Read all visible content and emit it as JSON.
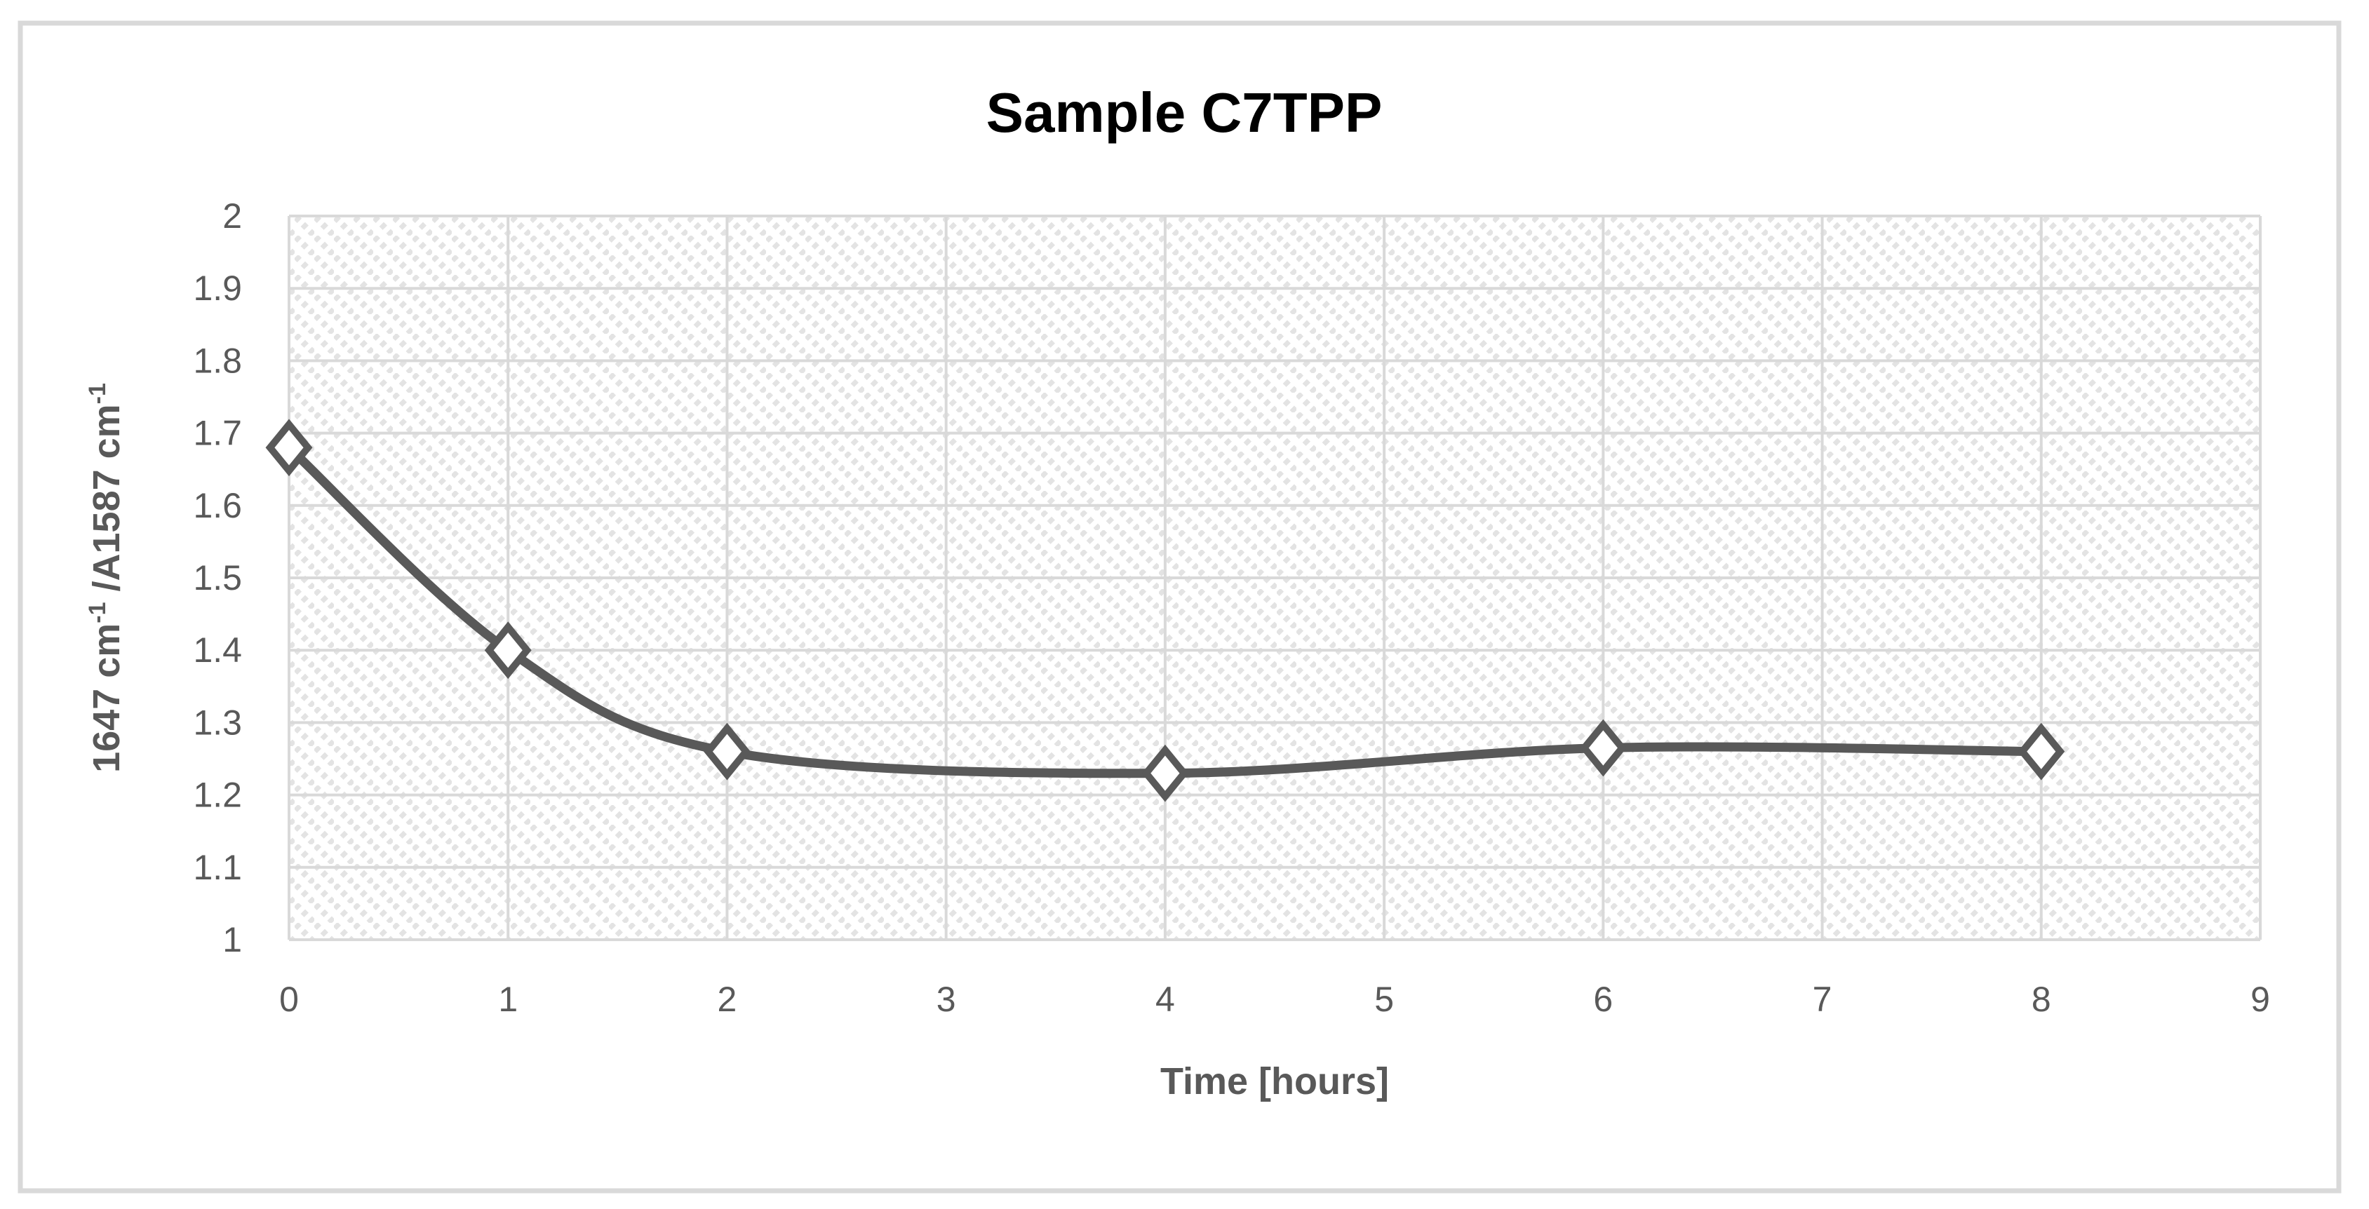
{
  "chart_data": {
    "type": "line",
    "title": "Sample C7TPP",
    "xlabel": "Time [hours]",
    "ylabel": "1647 cm⁻¹ /A1587 cm⁻¹",
    "ylabel_parts": [
      {
        "t": "1647 cm",
        "sup": false
      },
      {
        "t": "-1",
        "sup": true
      },
      {
        "t": " /A1587 cm",
        "sup": false
      },
      {
        "t": "-1",
        "sup": true
      }
    ],
    "series": [
      {
        "name": "Sample C7TPP",
        "x": [
          0,
          1,
          2,
          4,
          6,
          8
        ],
        "y": [
          1.68,
          1.4,
          1.26,
          1.23,
          1.265,
          1.26
        ]
      }
    ],
    "x_ticks": [
      0,
      1,
      2,
      3,
      4,
      5,
      6,
      7,
      8,
      9
    ],
    "y_ticks": [
      "2",
      "1.9",
      "1.8",
      "1.7",
      "1.6",
      "1.5",
      "1.4",
      "1.3",
      "1.2",
      "1.1",
      "1"
    ],
    "xlim": [
      0,
      9
    ],
    "ylim": [
      1,
      2
    ],
    "grid": true,
    "legend": "none",
    "line_style": "smooth",
    "marker": "open-diamond",
    "plot_fill": "diagonal-hatch",
    "colors": {
      "line": "#595959",
      "marker_fill": "#ffffff",
      "grid": "#d9d9d9",
      "hatch": "#e3e3e3",
      "tick_text": "#595959",
      "axis_title_text": "#595959",
      "title_text": "#000000",
      "border": "#d9d9d9",
      "background": "#ffffff"
    }
  }
}
